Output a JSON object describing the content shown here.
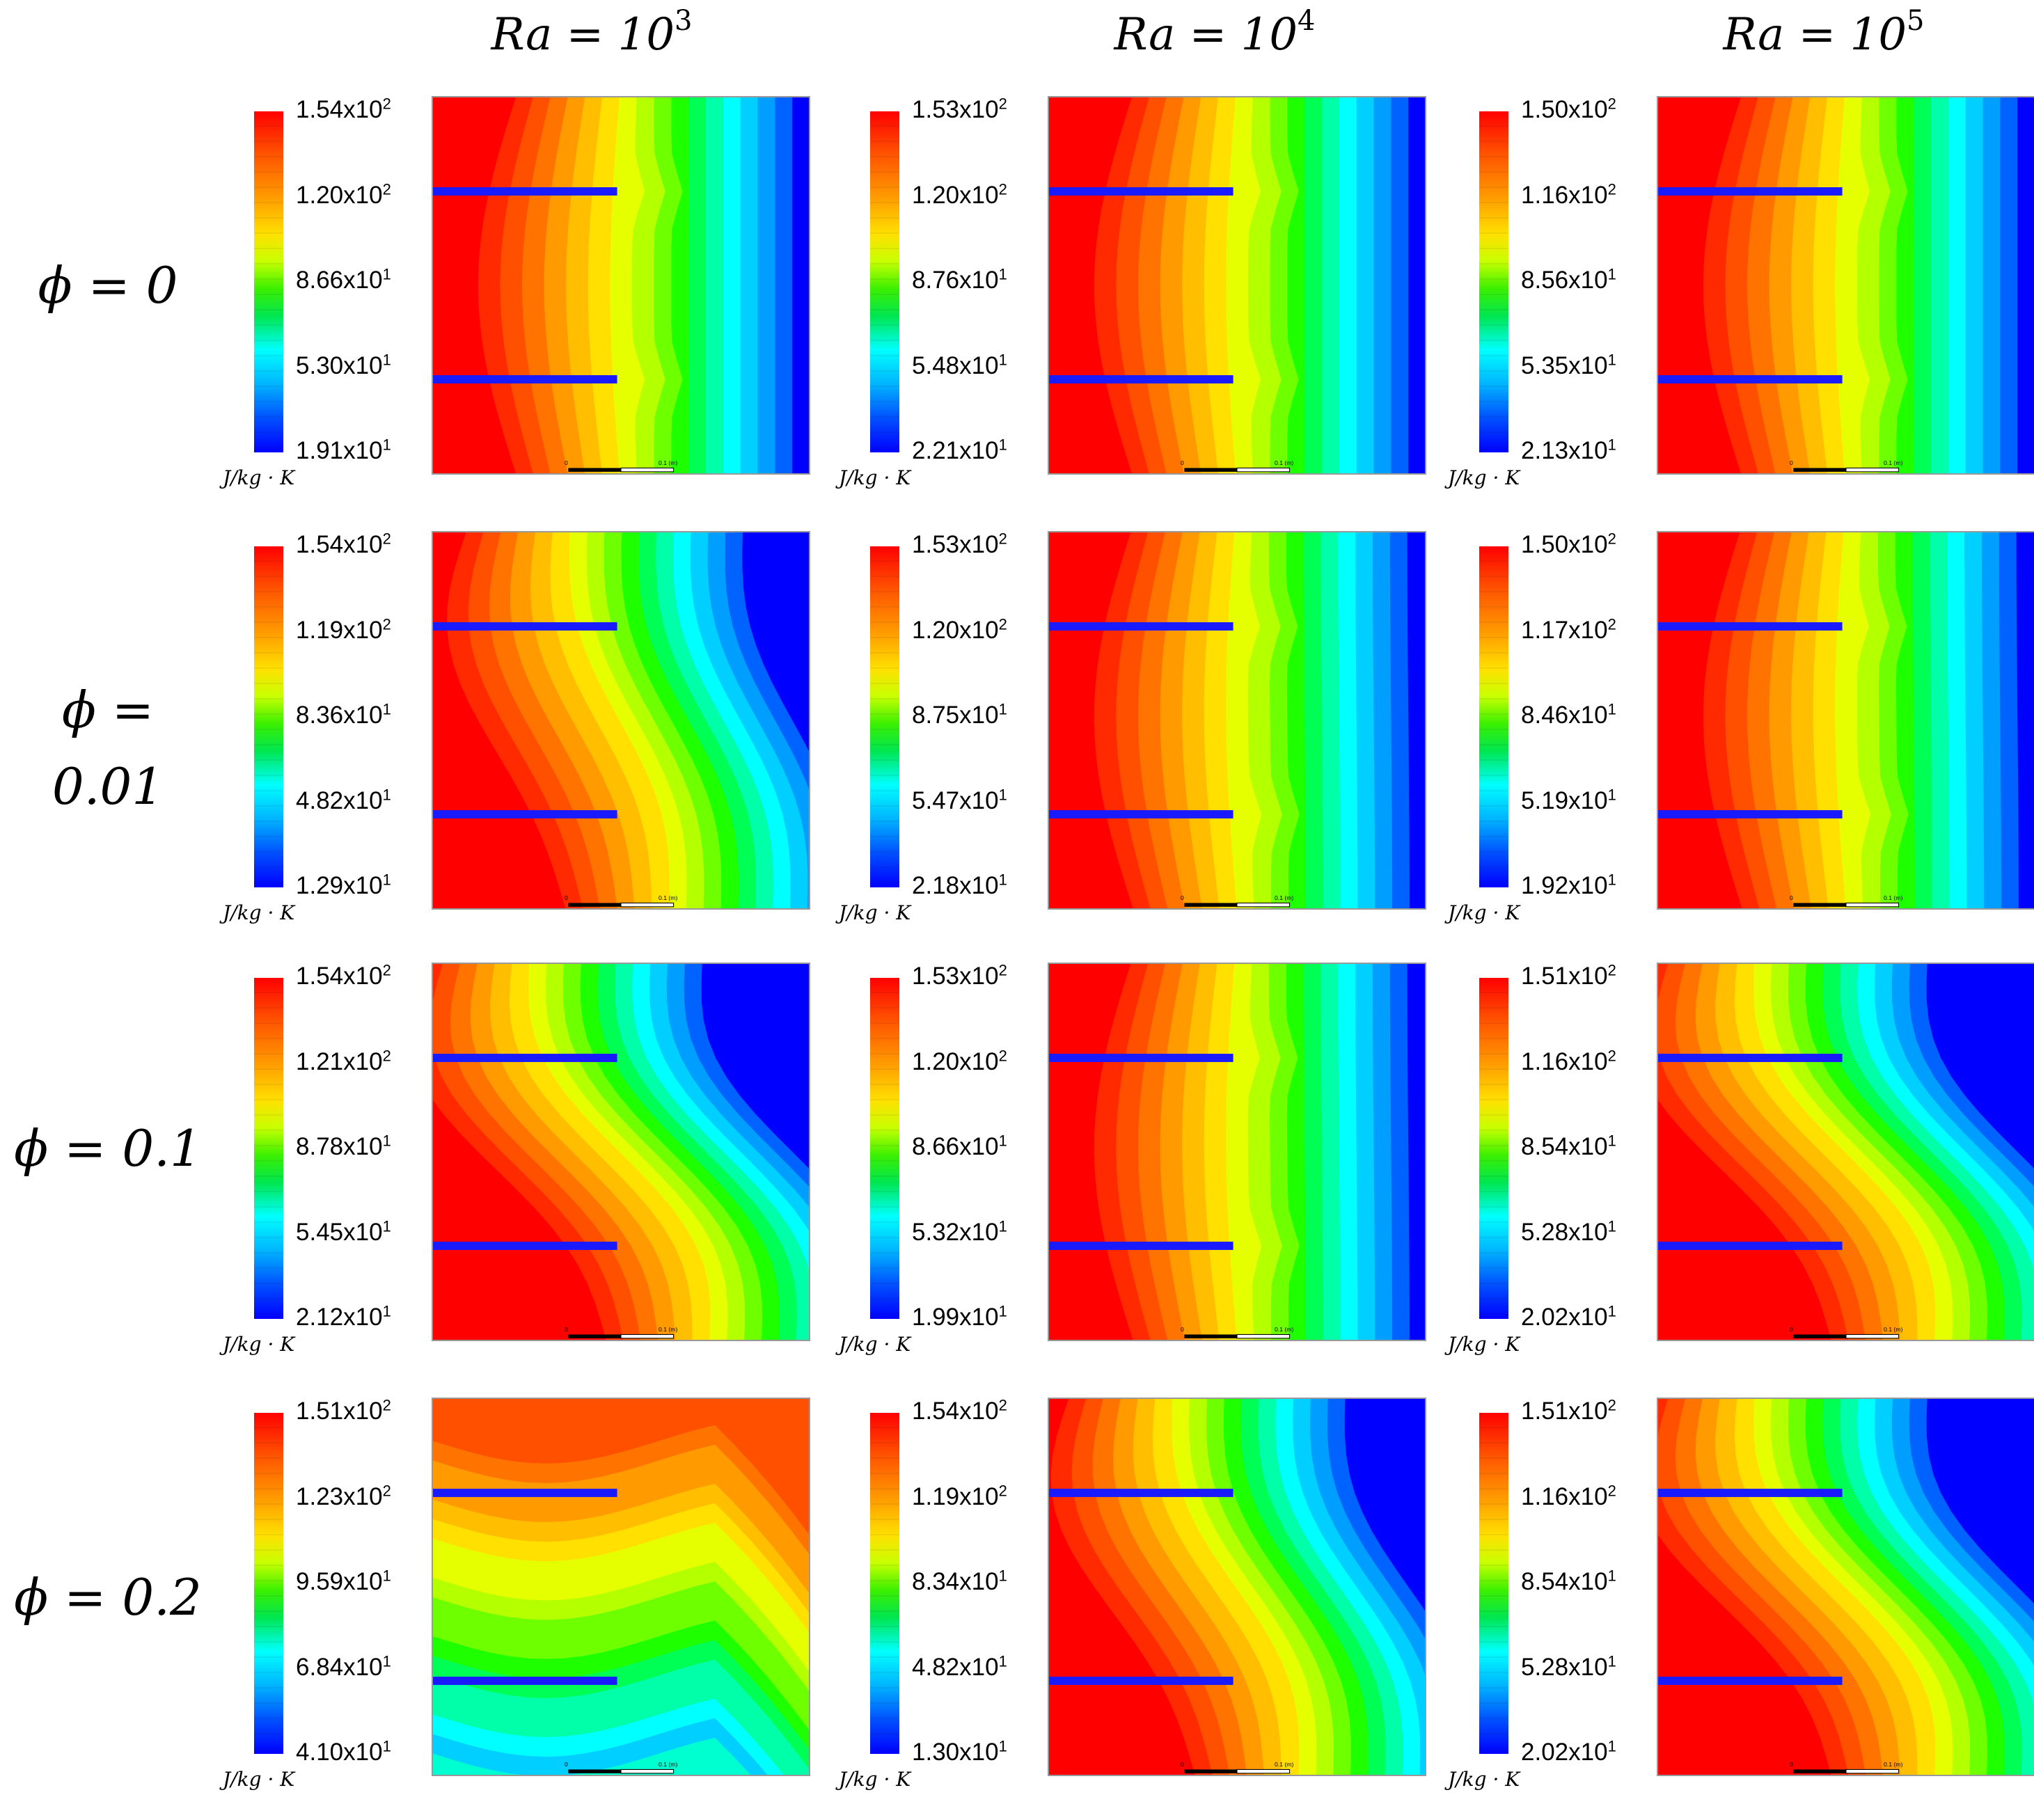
{
  "columns": [
    {
      "base": "Ra = 10",
      "exp": "3"
    },
    {
      "base": "Ra = 10",
      "exp": "4"
    },
    {
      "base": "Ra = 10",
      "exp": "5"
    }
  ],
  "rows": [
    {
      "label": "ϕ = 0"
    },
    {
      "label": "ϕ = 0.01"
    },
    {
      "label": "ϕ = 0.1"
    },
    {
      "label": "ϕ = 0.2"
    }
  ],
  "unit": "J/kg · K",
  "scale_bar": {
    "left": "0",
    "right": "0.1 (m)"
  },
  "panels": [
    {
      "ticks": [
        {
          "m": "1.54x10",
          "e": "2"
        },
        {
          "m": "1.20x10",
          "e": "2"
        },
        {
          "m": "8.66x10",
          "e": "1"
        },
        {
          "m": "5.30x10",
          "e": "1"
        },
        {
          "m": "1.91x10",
          "e": "1"
        }
      ],
      "pattern": "conduction",
      "strength": 0.0
    },
    {
      "ticks": [
        {
          "m": "1.53x10",
          "e": "2"
        },
        {
          "m": "1.20x10",
          "e": "2"
        },
        {
          "m": "8.76x10",
          "e": "1"
        },
        {
          "m": "5.48x10",
          "e": "1"
        },
        {
          "m": "2.21x10",
          "e": "1"
        }
      ],
      "pattern": "conduction",
      "strength": 0.0
    },
    {
      "ticks": [
        {
          "m": "1.50x10",
          "e": "2"
        },
        {
          "m": "1.16x10",
          "e": "2"
        },
        {
          "m": "8.56x10",
          "e": "1"
        },
        {
          "m": "5.35x10",
          "e": "1"
        },
        {
          "m": "2.13x10",
          "e": "1"
        }
      ],
      "pattern": "conduction",
      "strength": 0.0
    },
    {
      "ticks": [
        {
          "m": "1.54x10",
          "e": "2"
        },
        {
          "m": "1.19x10",
          "e": "2"
        },
        {
          "m": "8.36x10",
          "e": "1"
        },
        {
          "m": "4.82x10",
          "e": "1"
        },
        {
          "m": "1.29x10",
          "e": "1"
        }
      ],
      "pattern": "convection",
      "strength": 0.55
    },
    {
      "ticks": [
        {
          "m": "1.53x10",
          "e": "2"
        },
        {
          "m": "1.20x10",
          "e": "2"
        },
        {
          "m": "8.75x10",
          "e": "1"
        },
        {
          "m": "5.47x10",
          "e": "1"
        },
        {
          "m": "2.18x10",
          "e": "1"
        }
      ],
      "pattern": "conduction",
      "strength": 0.05
    },
    {
      "ticks": [
        {
          "m": "1.50x10",
          "e": "2"
        },
        {
          "m": "1.17x10",
          "e": "2"
        },
        {
          "m": "8.46x10",
          "e": "1"
        },
        {
          "m": "5.19x10",
          "e": "1"
        },
        {
          "m": "1.92x10",
          "e": "1"
        }
      ],
      "pattern": "conduction",
      "strength": 0.05
    },
    {
      "ticks": [
        {
          "m": "1.54x10",
          "e": "2"
        },
        {
          "m": "1.21x10",
          "e": "2"
        },
        {
          "m": "8.78x10",
          "e": "1"
        },
        {
          "m": "5.45x10",
          "e": "1"
        },
        {
          "m": "2.12x10",
          "e": "1"
        }
      ],
      "pattern": "convection",
      "strength": 1.0
    },
    {
      "ticks": [
        {
          "m": "1.53x10",
          "e": "2"
        },
        {
          "m": "1.20x10",
          "e": "2"
        },
        {
          "m": "8.66x10",
          "e": "1"
        },
        {
          "m": "5.32x10",
          "e": "1"
        },
        {
          "m": "1.99x10",
          "e": "1"
        }
      ],
      "pattern": "conduction",
      "strength": 0.05
    },
    {
      "ticks": [
        {
          "m": "1.51x10",
          "e": "2"
        },
        {
          "m": "1.16x10",
          "e": "2"
        },
        {
          "m": "8.54x10",
          "e": "1"
        },
        {
          "m": "5.28x10",
          "e": "1"
        },
        {
          "m": "2.02x10",
          "e": "1"
        }
      ],
      "pattern": "convection",
      "strength": 1.0
    },
    {
      "ticks": [
        {
          "m": "1.51x10",
          "e": "2"
        },
        {
          "m": "1.23x10",
          "e": "2"
        },
        {
          "m": "9.59x10",
          "e": "1"
        },
        {
          "m": "6.84x10",
          "e": "1"
        },
        {
          "m": "4.10x10",
          "e": "1"
        }
      ],
      "pattern": "mixed",
      "strength": 1.0
    },
    {
      "ticks": [
        {
          "m": "1.54x10",
          "e": "2"
        },
        {
          "m": "1.19x10",
          "e": "2"
        },
        {
          "m": "8.34x10",
          "e": "1"
        },
        {
          "m": "4.82x10",
          "e": "1"
        },
        {
          "m": "1.30x10",
          "e": "1"
        }
      ],
      "pattern": "convection",
      "strength": 0.7
    },
    {
      "ticks": [
        {
          "m": "1.51x10",
          "e": "2"
        },
        {
          "m": "1.16x10",
          "e": "2"
        },
        {
          "m": "8.54x10",
          "e": "1"
        },
        {
          "m": "5.28x10",
          "e": "1"
        },
        {
          "m": "2.02x10",
          "e": "1"
        }
      ],
      "pattern": "convection",
      "strength": 1.0
    }
  ],
  "colors": {
    "fin": "#1a1aff",
    "hot": "#ff0000",
    "cold": "#0000ff"
  }
}
